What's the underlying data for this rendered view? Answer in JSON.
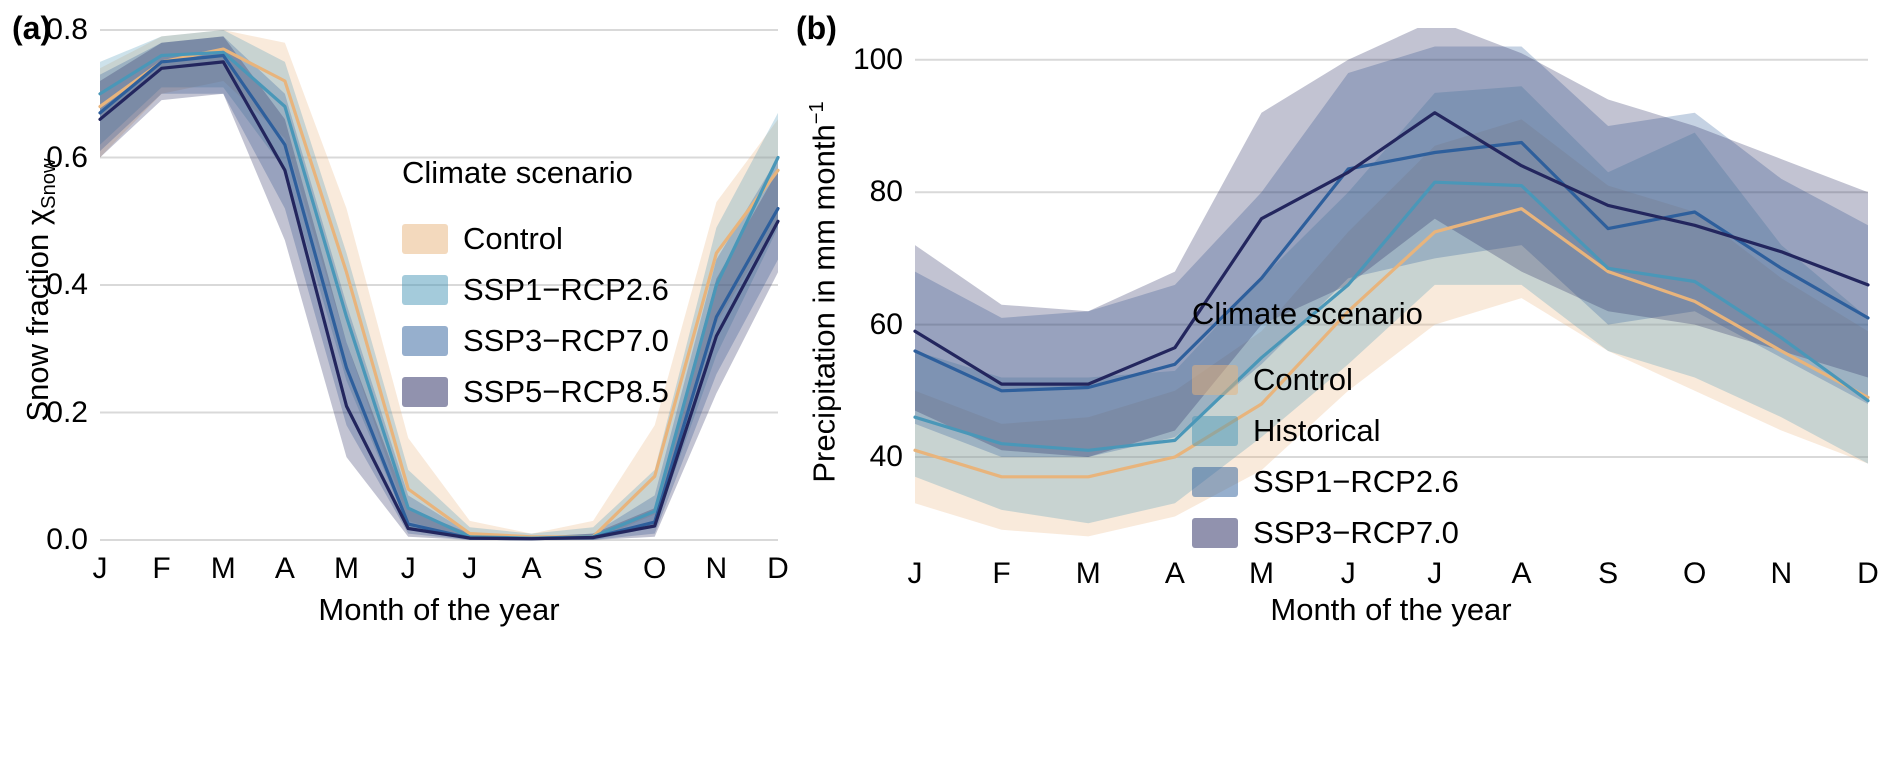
{
  "figure": {
    "panels": [
      {
        "label": "(a)",
        "y_axis_label": {
          "main": "Snow fraction χ",
          "subscript": "Snow"
        },
        "x_axis_label": "Month of the year",
        "legend_title": "Climate scenario"
      },
      {
        "label": "(b)",
        "y_axis_label": {
          "main": "Precipitation in mm month",
          "superscript": "−1"
        },
        "x_axis_label": "Month of the year",
        "legend_title": "Climate scenario"
      }
    ],
    "colors": {
      "control": "#E8B47C",
      "light_blue": "#4A97B8",
      "medium_blue": "#2E5F9C",
      "dark_navy": "#23265E",
      "gridline": "#d9d9d9",
      "background": "#ffffff"
    }
  },
  "chart_data": [
    {
      "type": "line",
      "title": "",
      "xlabel": "Month of the year",
      "ylabel": "Snow fraction χSnow",
      "x_categories": [
        "J",
        "F",
        "M",
        "A",
        "M",
        "J",
        "J",
        "A",
        "S",
        "O",
        "N",
        "D"
      ],
      "ylim": [
        0.0,
        0.8
      ],
      "y_ticks": [
        0.0,
        0.2,
        0.4,
        0.6,
        0.8
      ],
      "y_tick_labels": [
        "0.0",
        "0.2",
        "0.4",
        "0.6",
        "0.8"
      ],
      "grid": "horizontal",
      "legend_title": "Climate scenario",
      "legend_position": "inside-center-right",
      "series": [
        {
          "name": "Control",
          "color": "#E8B47C",
          "values": [
            0.68,
            0.75,
            0.77,
            0.72,
            0.42,
            0.08,
            0.01,
            0.005,
            0.005,
            0.1,
            0.45,
            0.58
          ],
          "band_lower": [
            0.6,
            0.7,
            0.72,
            0.63,
            0.31,
            0.03,
            0.0,
            0.0,
            0.0,
            0.04,
            0.34,
            0.5
          ],
          "band_upper": [
            0.74,
            0.79,
            0.8,
            0.78,
            0.52,
            0.16,
            0.03,
            0.01,
            0.03,
            0.18,
            0.53,
            0.66
          ]
        },
        {
          "name": "SSP1−RCP2.6",
          "color": "#4A97B8",
          "values": [
            0.7,
            0.76,
            0.765,
            0.68,
            0.35,
            0.05,
            0.005,
            0.003,
            0.005,
            0.045,
            0.4,
            0.6
          ],
          "band_lower": [
            0.62,
            0.71,
            0.71,
            0.58,
            0.25,
            0.02,
            0.0,
            0.0,
            0.0,
            0.02,
            0.29,
            0.49
          ],
          "band_upper": [
            0.75,
            0.79,
            0.8,
            0.75,
            0.45,
            0.11,
            0.02,
            0.01,
            0.02,
            0.11,
            0.49,
            0.67
          ]
        },
        {
          "name": "SSP3−RCP7.0",
          "color": "#2E5F9C",
          "values": [
            0.67,
            0.75,
            0.76,
            0.62,
            0.27,
            0.025,
            0.003,
            0.002,
            0.004,
            0.028,
            0.35,
            0.52
          ],
          "band_lower": [
            0.61,
            0.7,
            0.7,
            0.52,
            0.18,
            0.01,
            0.0,
            0.0,
            0.0,
            0.01,
            0.26,
            0.44
          ],
          "band_upper": [
            0.73,
            0.78,
            0.79,
            0.7,
            0.37,
            0.07,
            0.01,
            0.005,
            0.01,
            0.07,
            0.44,
            0.6
          ]
        },
        {
          "name": "SSP5−RCP8.5",
          "color": "#23265E",
          "values": [
            0.66,
            0.74,
            0.75,
            0.58,
            0.21,
            0.018,
            0.003,
            0.002,
            0.004,
            0.022,
            0.32,
            0.5
          ],
          "band_lower": [
            0.6,
            0.69,
            0.7,
            0.47,
            0.13,
            0.005,
            0.0,
            0.0,
            0.0,
            0.005,
            0.23,
            0.42
          ],
          "band_upper": [
            0.72,
            0.78,
            0.79,
            0.66,
            0.31,
            0.05,
            0.01,
            0.005,
            0.01,
            0.05,
            0.41,
            0.58
          ]
        }
      ]
    },
    {
      "type": "line",
      "title": "",
      "xlabel": "Month of the year",
      "ylabel": "Precipitation in mm month−1",
      "x_categories": [
        "J",
        "F",
        "M",
        "A",
        "M",
        "J",
        "J",
        "A",
        "S",
        "O",
        "N",
        "D"
      ],
      "ylim": [
        27,
        105
      ],
      "y_ticks": [
        40,
        60,
        80,
        100
      ],
      "y_tick_labels": [
        "40",
        "60",
        "80",
        "100"
      ],
      "grid": "horizontal",
      "legend_title": "Climate scenario",
      "legend_position": "inside-center-right",
      "series": [
        {
          "name": "Control",
          "color": "#E8B47C",
          "values": [
            41,
            37,
            37,
            40,
            48,
            62,
            74,
            77.5,
            68,
            63.5,
            56,
            49
          ],
          "band_lower": [
            33,
            29,
            28,
            31,
            38,
            50,
            60,
            64,
            56,
            50,
            44,
            39
          ],
          "band_upper": [
            50,
            45,
            46,
            50,
            59,
            74,
            87,
            91,
            81,
            77,
            67,
            59
          ]
        },
        {
          "name": "Historical",
          "color": "#4A97B8",
          "values": [
            46,
            42,
            41,
            42.5,
            55,
            66,
            81.5,
            81,
            68.5,
            66.5,
            58,
            48.5
          ],
          "band_lower": [
            37,
            32,
            30,
            33,
            43,
            54,
            66,
            66,
            56,
            52,
            46,
            39
          ],
          "band_upper": [
            56,
            52,
            52,
            53,
            67,
            80,
            95,
            96,
            83,
            89,
            72,
            61
          ]
        },
        {
          "name": "SSP1−RCP2.6",
          "color": "#2E5F9C",
          "values": [
            56,
            50,
            50.5,
            54,
            67,
            83.5,
            86,
            87.5,
            74.5,
            77,
            68.5,
            61
          ],
          "band_lower": [
            45,
            40,
            40,
            43,
            54,
            67,
            70,
            72,
            60,
            62,
            55,
            48
          ],
          "band_upper": [
            68,
            61,
            62,
            66,
            80,
            98,
            102,
            102,
            90,
            92,
            82,
            75
          ]
        },
        {
          "name": "SSP3−RCP7.0",
          "color": "#23265E",
          "values": [
            59,
            51,
            51,
            56.5,
            76,
            83,
            92,
            84,
            78,
            75,
            71,
            66
          ],
          "band_lower": [
            47,
            41,
            40,
            44,
            60,
            66,
            76,
            68,
            62,
            60,
            56,
            52
          ],
          "band_upper": [
            72,
            63,
            62,
            68,
            92,
            100,
            106,
            101,
            94,
            90,
            85,
            80
          ]
        }
      ]
    }
  ]
}
